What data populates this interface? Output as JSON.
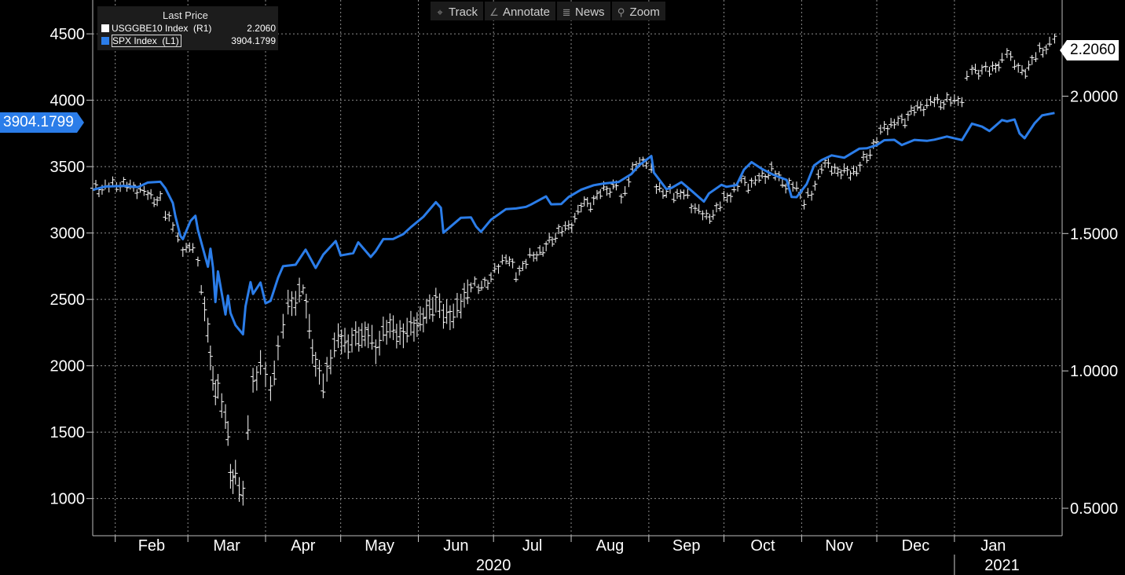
{
  "toolbar": {
    "track": {
      "label": "Track",
      "icon": "crosshair-icon"
    },
    "annotate": {
      "label": "Annotate",
      "icon": "pencil-icon"
    },
    "news": {
      "label": "News",
      "icon": "news-icon"
    },
    "zoom": {
      "label": "Zoom",
      "icon": "magnifier-icon"
    }
  },
  "legend": {
    "header": "Last Price",
    "items": [
      {
        "name": "USGGBE10 Index  (R1)",
        "value": "2.2060",
        "color": "#ffffff"
      },
      {
        "name": "SPX Index  (L1)",
        "value": "3904.1799",
        "color": "#2b7de9"
      }
    ]
  },
  "tags": {
    "left_last": "3904.1799",
    "right_last": "2.2060"
  },
  "colors": {
    "background": "#000000",
    "spx": "#2b7de9",
    "breakeven": "#ffffff",
    "grid": "#8c8c8c"
  },
  "chart_data": {
    "type": "line",
    "left_axis": {
      "ticks": [
        1000,
        1500,
        2000,
        2500,
        3000,
        3500,
        4000,
        4500
      ],
      "range": [
        720,
        4755
      ]
    },
    "right_axis": {
      "ticks": [
        "0.5000",
        "1.0000",
        "1.5000",
        "2.0000"
      ],
      "range": [
        0.4,
        2.35
      ]
    },
    "x_range": [
      "2020-01-23",
      "2021-02-13"
    ],
    "months": [
      {
        "label": "Feb",
        "date": "2020-02-01"
      },
      {
        "label": "Mar",
        "date": "2020-03-01"
      },
      {
        "label": "Apr",
        "date": "2020-04-01"
      },
      {
        "label": "May",
        "date": "2020-05-01"
      },
      {
        "label": "Jun",
        "date": "2020-06-01"
      },
      {
        "label": "Jul",
        "date": "2020-07-01"
      },
      {
        "label": "Aug",
        "date": "2020-08-01"
      },
      {
        "label": "Sep",
        "date": "2020-09-01"
      },
      {
        "label": "Oct",
        "date": "2020-10-01"
      },
      {
        "label": "Nov",
        "date": "2020-11-01"
      },
      {
        "label": "Dec",
        "date": "2020-12-01"
      },
      {
        "label": "Jan",
        "date": "2021-01-01"
      }
    ],
    "years": [
      {
        "label": "2020",
        "date": "2020-07-01"
      },
      {
        "label": "2021",
        "date": "2021-01-20"
      }
    ],
    "year_divider": "2021-01-01",
    "series": [
      {
        "name": "SPX Index  (L1)",
        "axis": "left",
        "style": "line",
        "points": [
          [
            "2020-01-23",
            3325
          ],
          [
            "2020-01-28",
            3350
          ],
          [
            "2020-02-05",
            3355
          ],
          [
            "2020-02-10",
            3345
          ],
          [
            "2020-02-14",
            3380
          ],
          [
            "2020-02-19",
            3386
          ],
          [
            "2020-02-21",
            3337
          ],
          [
            "2020-02-24",
            3226
          ],
          [
            "2020-02-25",
            3128
          ],
          [
            "2020-02-27",
            2978
          ],
          [
            "2020-02-28",
            2954
          ],
          [
            "2020-03-02",
            3090
          ],
          [
            "2020-03-04",
            3130
          ],
          [
            "2020-03-05",
            3023
          ],
          [
            "2020-03-09",
            2746
          ],
          [
            "2020-03-10",
            2882
          ],
          [
            "2020-03-11",
            2741
          ],
          [
            "2020-03-12",
            2480
          ],
          [
            "2020-03-13",
            2711
          ],
          [
            "2020-03-16",
            2386
          ],
          [
            "2020-03-17",
            2529
          ],
          [
            "2020-03-18",
            2398
          ],
          [
            "2020-03-20",
            2305
          ],
          [
            "2020-03-23",
            2237
          ],
          [
            "2020-03-24",
            2447
          ],
          [
            "2020-03-26",
            2630
          ],
          [
            "2020-03-27",
            2541
          ],
          [
            "2020-03-30",
            2627
          ],
          [
            "2020-04-01",
            2470
          ],
          [
            "2020-04-03",
            2489
          ],
          [
            "2020-04-06",
            2664
          ],
          [
            "2020-04-08",
            2750
          ],
          [
            "2020-04-13",
            2761
          ],
          [
            "2020-04-17",
            2875
          ],
          [
            "2020-04-21",
            2737
          ],
          [
            "2020-04-24",
            2837
          ],
          [
            "2020-04-29",
            2939
          ],
          [
            "2020-05-01",
            2831
          ],
          [
            "2020-05-06",
            2848
          ],
          [
            "2020-05-08",
            2930
          ],
          [
            "2020-05-13",
            2820
          ],
          [
            "2020-05-15",
            2864
          ],
          [
            "2020-05-18",
            2954
          ],
          [
            "2020-05-22",
            2955
          ],
          [
            "2020-05-26",
            2992
          ],
          [
            "2020-05-29",
            3044
          ],
          [
            "2020-06-03",
            3122
          ],
          [
            "2020-06-08",
            3232
          ],
          [
            "2020-06-10",
            3190
          ],
          [
            "2020-06-11",
            3002
          ],
          [
            "2020-06-15",
            3067
          ],
          [
            "2020-06-18",
            3115
          ],
          [
            "2020-06-22",
            3118
          ],
          [
            "2020-06-24",
            3050
          ],
          [
            "2020-06-26",
            3009
          ],
          [
            "2020-06-30",
            3100
          ],
          [
            "2020-07-06",
            3180
          ],
          [
            "2020-07-10",
            3185
          ],
          [
            "2020-07-14",
            3197
          ],
          [
            "2020-07-16",
            3215
          ],
          [
            "2020-07-22",
            3276
          ],
          [
            "2020-07-24",
            3216
          ],
          [
            "2020-07-28",
            3218
          ],
          [
            "2020-07-31",
            3271
          ],
          [
            "2020-08-05",
            3327
          ],
          [
            "2020-08-10",
            3360
          ],
          [
            "2020-08-14",
            3373
          ],
          [
            "2020-08-20",
            3385
          ],
          [
            "2020-08-25",
            3444
          ],
          [
            "2020-08-28",
            3508
          ],
          [
            "2020-09-02",
            3580
          ],
          [
            "2020-09-03",
            3455
          ],
          [
            "2020-09-08",
            3331
          ],
          [
            "2020-09-10",
            3339
          ],
          [
            "2020-09-14",
            3383
          ],
          [
            "2020-09-18",
            3319
          ],
          [
            "2020-09-23",
            3237
          ],
          [
            "2020-09-25",
            3298
          ],
          [
            "2020-09-30",
            3363
          ],
          [
            "2020-10-02",
            3348
          ],
          [
            "2020-10-06",
            3361
          ],
          [
            "2020-10-09",
            3477
          ],
          [
            "2020-10-12",
            3534
          ],
          [
            "2020-10-16",
            3484
          ],
          [
            "2020-10-21",
            3436
          ],
          [
            "2020-10-26",
            3400
          ],
          [
            "2020-10-28",
            3271
          ],
          [
            "2020-10-30",
            3270
          ],
          [
            "2020-11-03",
            3369
          ],
          [
            "2020-11-06",
            3509
          ],
          [
            "2020-11-09",
            3550
          ],
          [
            "2020-11-13",
            3585
          ],
          [
            "2020-11-18",
            3567
          ],
          [
            "2020-11-24",
            3635
          ],
          [
            "2020-11-27",
            3638
          ],
          [
            "2020-12-01",
            3662
          ],
          [
            "2020-12-04",
            3699
          ],
          [
            "2020-12-08",
            3702
          ],
          [
            "2020-12-11",
            3663
          ],
          [
            "2020-12-16",
            3701
          ],
          [
            "2020-12-21",
            3694
          ],
          [
            "2020-12-24",
            3703
          ],
          [
            "2020-12-29",
            3727
          ],
          [
            "2021-01-04",
            3700
          ],
          [
            "2021-01-08",
            3824
          ],
          [
            "2021-01-12",
            3801
          ],
          [
            "2021-01-15",
            3768
          ],
          [
            "2021-01-20",
            3851
          ],
          [
            "2021-01-22",
            3841
          ],
          [
            "2021-01-25",
            3855
          ],
          [
            "2021-01-27",
            3750
          ],
          [
            "2021-01-29",
            3714
          ],
          [
            "2021-02-02",
            3826
          ],
          [
            "2021-02-05",
            3886
          ],
          [
            "2021-02-10",
            3904
          ]
        ]
      },
      {
        "name": "USGGBE10 Index  (R1)",
        "axis": "right",
        "style": "bars",
        "points": [
          [
            "2020-01-23",
            1.66
          ],
          [
            "2020-01-28",
            1.67
          ],
          [
            "2020-02-03",
            1.68
          ],
          [
            "2020-02-07",
            1.67
          ],
          [
            "2020-02-11",
            1.66
          ],
          [
            "2020-02-14",
            1.64
          ],
          [
            "2020-02-19",
            1.62
          ],
          [
            "2020-02-21",
            1.57
          ],
          [
            "2020-02-24",
            1.54
          ],
          [
            "2020-02-26",
            1.47
          ],
          [
            "2020-02-28",
            1.44
          ],
          [
            "2020-03-03",
            1.46
          ],
          [
            "2020-03-05",
            1.38
          ],
          [
            "2020-03-09",
            1.15
          ],
          [
            "2020-03-10",
            1.06
          ],
          [
            "2020-03-11",
            0.97
          ],
          [
            "2020-03-12",
            0.9
          ],
          [
            "2020-03-13",
            0.94
          ],
          [
            "2020-03-16",
            0.83
          ],
          [
            "2020-03-17",
            0.78
          ],
          [
            "2020-03-18",
            0.62
          ],
          [
            "2020-03-19",
            0.58
          ],
          [
            "2020-03-20",
            0.62
          ],
          [
            "2020-03-23",
            0.55
          ],
          [
            "2020-03-25",
            0.8
          ],
          [
            "2020-03-27",
            0.95
          ],
          [
            "2020-03-30",
            1.03
          ],
          [
            "2020-04-01",
            0.99
          ],
          [
            "2020-04-03",
            0.92
          ],
          [
            "2020-04-06",
            1.09
          ],
          [
            "2020-04-08",
            1.16
          ],
          [
            "2020-04-10",
            1.24
          ],
          [
            "2020-04-13",
            1.26
          ],
          [
            "2020-04-16",
            1.3
          ],
          [
            "2020-04-21",
            1.02
          ],
          [
            "2020-04-24",
            0.95
          ],
          [
            "2020-04-27",
            1.05
          ],
          [
            "2020-04-30",
            1.12
          ],
          [
            "2020-05-04",
            1.1
          ],
          [
            "2020-05-07",
            1.12
          ],
          [
            "2020-05-12",
            1.14
          ],
          [
            "2020-05-15",
            1.07
          ],
          [
            "2020-05-18",
            1.15
          ],
          [
            "2020-05-22",
            1.15
          ],
          [
            "2020-05-26",
            1.13
          ],
          [
            "2020-05-29",
            1.16
          ],
          [
            "2020-06-03",
            1.19
          ],
          [
            "2020-06-08",
            1.26
          ],
          [
            "2020-06-11",
            1.2
          ],
          [
            "2020-06-15",
            1.21
          ],
          [
            "2020-06-18",
            1.24
          ],
          [
            "2020-06-22",
            1.32
          ],
          [
            "2020-06-25",
            1.3
          ],
          [
            "2020-06-30",
            1.34
          ],
          [
            "2020-07-06",
            1.42
          ],
          [
            "2020-07-10",
            1.35
          ],
          [
            "2020-07-14",
            1.4
          ],
          [
            "2020-07-17",
            1.42
          ],
          [
            "2020-07-22",
            1.45
          ],
          [
            "2020-07-27",
            1.51
          ],
          [
            "2020-07-31",
            1.52
          ],
          [
            "2020-08-05",
            1.6
          ],
          [
            "2020-08-10",
            1.62
          ],
          [
            "2020-08-14",
            1.66
          ],
          [
            "2020-08-19",
            1.67
          ],
          [
            "2020-08-21",
            1.62
          ],
          [
            "2020-08-24",
            1.7
          ],
          [
            "2020-08-27",
            1.75
          ],
          [
            "2020-08-31",
            1.77
          ],
          [
            "2020-09-02",
            1.72
          ],
          [
            "2020-09-04",
            1.67
          ],
          [
            "2020-09-08",
            1.65
          ],
          [
            "2020-09-11",
            1.64
          ],
          [
            "2020-09-15",
            1.65
          ],
          [
            "2020-09-18",
            1.6
          ],
          [
            "2020-09-21",
            1.59
          ],
          [
            "2020-09-24",
            1.55
          ],
          [
            "2020-09-28",
            1.59
          ],
          [
            "2020-10-01",
            1.62
          ],
          [
            "2020-10-05",
            1.66
          ],
          [
            "2020-10-08",
            1.69
          ],
          [
            "2020-10-12",
            1.68
          ],
          [
            "2020-10-15",
            1.7
          ],
          [
            "2020-10-20",
            1.73
          ],
          [
            "2020-10-23",
            1.7
          ],
          [
            "2020-10-27",
            1.67
          ],
          [
            "2020-10-30",
            1.67
          ],
          [
            "2020-11-02",
            1.62
          ],
          [
            "2020-11-05",
            1.64
          ],
          [
            "2020-11-09",
            1.75
          ],
          [
            "2020-11-13",
            1.74
          ],
          [
            "2020-11-18",
            1.72
          ],
          [
            "2020-11-23",
            1.73
          ],
          [
            "2020-11-27",
            1.78
          ],
          [
            "2020-12-01",
            1.84
          ],
          [
            "2020-12-04",
            1.89
          ],
          [
            "2020-12-08",
            1.9
          ],
          [
            "2020-12-11",
            1.91
          ],
          [
            "2020-12-16",
            1.95
          ],
          [
            "2020-12-21",
            1.97
          ],
          [
            "2020-12-24",
            1.98
          ],
          [
            "2020-12-29",
            1.98
          ],
          [
            "2021-01-04",
            1.99
          ],
          [
            "2021-01-06",
            2.06
          ],
          [
            "2021-01-08",
            2.1
          ],
          [
            "2021-01-12",
            2.09
          ],
          [
            "2021-01-15",
            2.1
          ],
          [
            "2021-01-20",
            2.12
          ],
          [
            "2021-01-22",
            2.17
          ],
          [
            "2021-01-25",
            2.12
          ],
          [
            "2021-01-28",
            2.08
          ],
          [
            "2021-02-01",
            2.13
          ],
          [
            "2021-02-04",
            2.16
          ],
          [
            "2021-02-08",
            2.19
          ],
          [
            "2021-02-10",
            2.21
          ]
        ]
      }
    ]
  }
}
